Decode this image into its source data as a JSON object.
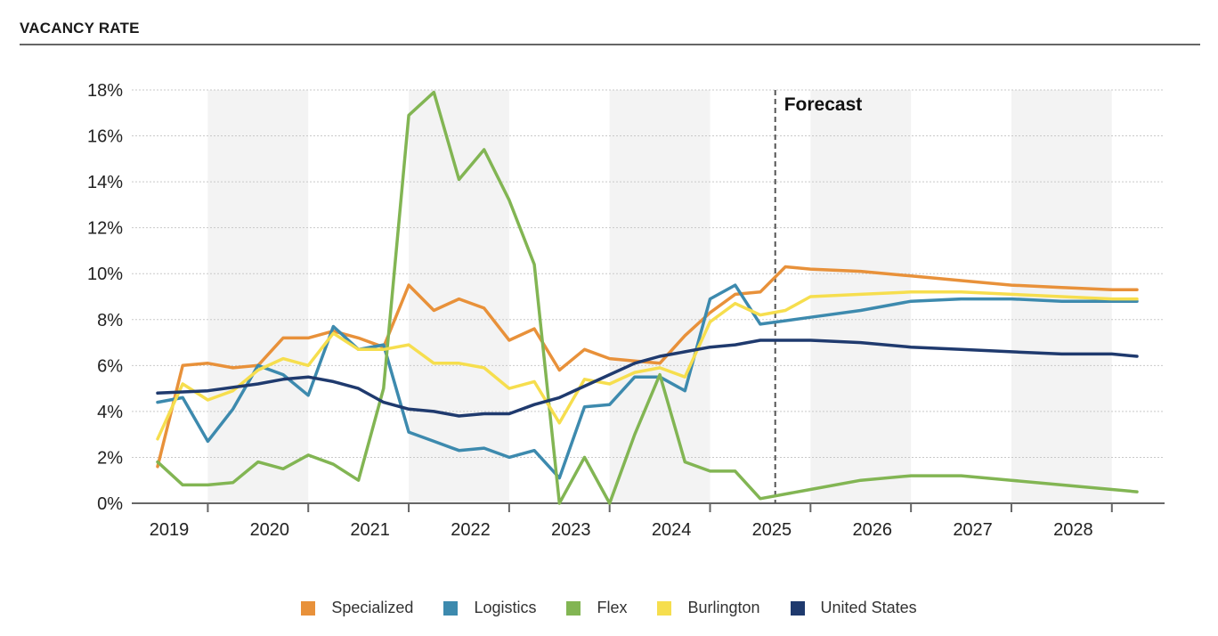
{
  "header": {
    "title": "VACANCY RATE"
  },
  "chart_data": {
    "type": "line",
    "title": "VACANCY RATE",
    "xlabel": "",
    "ylabel": "",
    "ylim": [
      0,
      18
    ],
    "y_ticks": [
      "0%",
      "2%",
      "4%",
      "6%",
      "8%",
      "10%",
      "12%",
      "14%",
      "16%",
      "18%"
    ],
    "x_ticks": [
      "2019",
      "2020",
      "2021",
      "2022",
      "2023",
      "2024",
      "2025",
      "2026",
      "2027",
      "2028"
    ],
    "x_domain": [
      2019.0,
      2028.75
    ],
    "forecast_start": 2024.75,
    "forecast_label": "Forecast",
    "grid": true,
    "legend_position": "bottom",
    "series": [
      {
        "name": "Specialized",
        "color": "#E8913A",
        "x": [
          2019.0,
          2019.25,
          2019.5,
          2019.75,
          2020.0,
          2020.25,
          2020.5,
          2020.75,
          2021.0,
          2021.25,
          2021.5,
          2021.75,
          2022.0,
          2022.25,
          2022.5,
          2022.75,
          2023.0,
          2023.25,
          2023.5,
          2023.75,
          2024.0,
          2024.25,
          2024.5,
          2024.75,
          2025.0,
          2025.25,
          2025.5,
          2026.0,
          2026.5,
          2027.0,
          2027.5,
          2028.0,
          2028.5,
          2028.75
        ],
        "y": [
          1.6,
          6.0,
          6.1,
          5.9,
          6.0,
          7.2,
          7.2,
          7.5,
          7.2,
          6.8,
          9.5,
          8.4,
          8.9,
          8.5,
          7.1,
          7.6,
          5.8,
          6.7,
          6.3,
          6.2,
          6.1,
          7.3,
          8.3,
          9.1,
          9.2,
          10.3,
          10.2,
          10.1,
          9.9,
          9.7,
          9.5,
          9.4,
          9.3,
          9.3
        ]
      },
      {
        "name": "Logistics",
        "color": "#3D8AAE",
        "x": [
          2019.0,
          2019.25,
          2019.5,
          2019.75,
          2020.0,
          2020.25,
          2020.5,
          2020.75,
          2021.0,
          2021.25,
          2021.5,
          2021.75,
          2022.0,
          2022.25,
          2022.5,
          2022.75,
          2023.0,
          2023.25,
          2023.5,
          2023.75,
          2024.0,
          2024.25,
          2024.5,
          2024.75,
          2025.0,
          2025.5,
          2026.0,
          2026.5,
          2027.0,
          2027.5,
          2028.0,
          2028.5,
          2028.75
        ],
        "y": [
          4.4,
          4.6,
          2.7,
          4.1,
          6.0,
          5.6,
          4.7,
          7.7,
          6.7,
          6.9,
          3.1,
          2.7,
          2.3,
          2.4,
          2.0,
          2.3,
          1.1,
          4.2,
          4.3,
          5.5,
          5.5,
          4.9,
          8.9,
          9.5,
          7.8,
          8.1,
          8.4,
          8.8,
          8.9,
          8.9,
          8.8,
          8.8,
          8.8
        ]
      },
      {
        "name": "Flex",
        "color": "#82B553",
        "x": [
          2019.0,
          2019.25,
          2019.5,
          2019.75,
          2020.0,
          2020.25,
          2020.5,
          2020.75,
          2021.0,
          2021.25,
          2021.5,
          2021.75,
          2022.0,
          2022.25,
          2022.5,
          2022.75,
          2023.0,
          2023.25,
          2023.5,
          2023.75,
          2024.0,
          2024.25,
          2024.5,
          2024.75,
          2025.0,
          2025.5,
          2026.0,
          2026.5,
          2027.0,
          2027.5,
          2028.0,
          2028.5,
          2028.75
        ],
        "y": [
          1.8,
          0.8,
          0.8,
          0.9,
          1.8,
          1.5,
          2.1,
          1.7,
          1.0,
          5.0,
          16.9,
          17.9,
          14.1,
          15.4,
          13.2,
          10.4,
          0.0,
          2.0,
          0.0,
          3.0,
          5.6,
          1.8,
          1.4,
          1.4,
          0.2,
          0.6,
          1.0,
          1.2,
          1.2,
          1.0,
          0.8,
          0.6,
          0.5
        ]
      },
      {
        "name": "Burlington",
        "color": "#F6DE4E",
        "x": [
          2019.0,
          2019.25,
          2019.5,
          2019.75,
          2020.0,
          2020.25,
          2020.5,
          2020.75,
          2021.0,
          2021.25,
          2021.5,
          2021.75,
          2022.0,
          2022.25,
          2022.5,
          2022.75,
          2023.0,
          2023.25,
          2023.5,
          2023.75,
          2024.0,
          2024.25,
          2024.5,
          2024.75,
          2025.0,
          2025.25,
          2025.5,
          2026.0,
          2026.5,
          2027.0,
          2027.5,
          2028.0,
          2028.5,
          2028.75
        ],
        "y": [
          2.8,
          5.2,
          4.5,
          4.9,
          5.8,
          6.3,
          6.0,
          7.4,
          6.7,
          6.7,
          6.9,
          6.1,
          6.1,
          5.9,
          5.0,
          5.3,
          3.5,
          5.4,
          5.2,
          5.7,
          5.9,
          5.5,
          7.9,
          8.7,
          8.2,
          8.4,
          9.0,
          9.1,
          9.2,
          9.2,
          9.1,
          9.0,
          8.9,
          8.9
        ]
      },
      {
        "name": "United States",
        "color": "#1F3A6E",
        "x": [
          2019.0,
          2019.5,
          2020.0,
          2020.25,
          2020.5,
          2020.75,
          2021.0,
          2021.25,
          2021.5,
          2021.75,
          2022.0,
          2022.25,
          2022.5,
          2022.75,
          2023.0,
          2023.25,
          2023.5,
          2023.75,
          2024.0,
          2024.25,
          2024.5,
          2024.75,
          2025.0,
          2025.5,
          2026.0,
          2026.5,
          2027.0,
          2027.5,
          2028.0,
          2028.5,
          2028.75
        ],
        "y": [
          4.8,
          4.9,
          5.2,
          5.4,
          5.5,
          5.3,
          5.0,
          4.4,
          4.1,
          4.0,
          3.8,
          3.9,
          3.9,
          4.3,
          4.6,
          5.1,
          5.6,
          6.1,
          6.4,
          6.6,
          6.8,
          6.9,
          7.1,
          7.1,
          7.0,
          6.8,
          6.7,
          6.6,
          6.5,
          6.5,
          6.4
        ]
      }
    ]
  }
}
